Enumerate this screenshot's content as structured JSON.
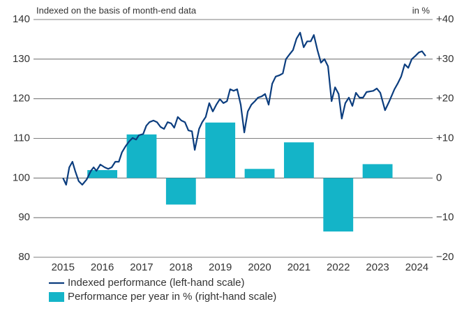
{
  "chart_data": {
    "type": "combo",
    "title": "Indexed on the basis of month-end data",
    "y2_label": "in %",
    "xlim": [
      2014.25,
      2024.4
    ],
    "xticks": [
      2015,
      2016,
      2017,
      2018,
      2019,
      2020,
      2021,
      2022,
      2023,
      2024
    ],
    "ylim": [
      80,
      140
    ],
    "yticks": [
      80,
      90,
      100,
      110,
      120,
      130,
      140
    ],
    "y2lim": [
      -20,
      40
    ],
    "y2ticks": [
      {
        "value": 40,
        "label": "+40"
      },
      {
        "value": 30,
        "label": "+30"
      },
      {
        "value": 20,
        "label": "+20"
      },
      {
        "value": 10,
        "label": "+10"
      },
      0,
      {
        "value": -10,
        "label": "−10"
      },
      {
        "value": -20,
        "label": "−20"
      }
    ],
    "grid": true,
    "legend": "bottom-left",
    "series": [
      {
        "name": "Indexed performance (left-hand scale)",
        "type": "line",
        "color": "#0b3d7e",
        "axis": "y",
        "x": [
          2015.0,
          2015.08,
          2015.16,
          2015.24,
          2015.31,
          2015.4,
          2015.49,
          2015.6,
          2015.71,
          2015.78,
          2015.85,
          2015.95,
          2016.06,
          2016.15,
          2016.24,
          2016.33,
          2016.42,
          2016.5,
          2016.59,
          2016.68,
          2016.77,
          2016.86,
          2016.93,
          2017.04,
          2017.12,
          2017.2,
          2017.3,
          2017.39,
          2017.48,
          2017.57,
          2017.66,
          2017.75,
          2017.83,
          2017.92,
          2018.01,
          2018.1,
          2018.19,
          2018.28,
          2018.35,
          2018.46,
          2018.54,
          2018.63,
          2018.72,
          2018.81,
          2018.9,
          2018.99,
          2019.08,
          2019.17,
          2019.25,
          2019.34,
          2019.43,
          2019.52,
          2019.61,
          2019.7,
          2019.79,
          2019.88,
          2019.96,
          2020.05,
          2020.14,
          2020.23,
          2020.32,
          2020.41,
          2020.5,
          2020.59,
          2020.67,
          2020.76,
          2020.85,
          2020.94,
          2021.03,
          2021.12,
          2021.21,
          2021.3,
          2021.38,
          2021.47,
          2021.56,
          2021.65,
          2021.74,
          2021.83,
          2021.92,
          2022.01,
          2022.09,
          2022.18,
          2022.27,
          2022.36,
          2022.45,
          2022.54,
          2022.63,
          2022.72,
          2022.89,
          2022.98,
          2023.07,
          2023.19,
          2023.3,
          2023.43,
          2023.51,
          2023.6,
          2023.69,
          2023.78,
          2023.87,
          2023.96,
          2024.05,
          2024.13,
          2024.19,
          2024.22
        ],
        "values": [
          100,
          98.3,
          102.7,
          104.1,
          101.8,
          99.2,
          98.3,
          99.6,
          101.8,
          102.7,
          101.8,
          103.4,
          102.7,
          102.3,
          102.7,
          104.1,
          104.1,
          106.5,
          108,
          109.2,
          110.1,
          109.7,
          110.8,
          111.1,
          113.2,
          114.1,
          114.5,
          114.1,
          112.9,
          112.4,
          114.1,
          113.8,
          112.7,
          115.4,
          114.5,
          114.1,
          112,
          111.8,
          107.1,
          112.4,
          114.1,
          115.4,
          118.9,
          116.8,
          118.5,
          119.9,
          118.9,
          119.4,
          122.4,
          122,
          122.4,
          118.5,
          111.5,
          116.8,
          118.5,
          119.4,
          120.3,
          120.6,
          121.2,
          118.5,
          123.8,
          125.6,
          125.9,
          126.4,
          130,
          131.2,
          132.3,
          135.2,
          136.7,
          133,
          134.5,
          134.5,
          136.1,
          132.3,
          129.1,
          130,
          128.2,
          119.4,
          122.9,
          121.2,
          115,
          118.9,
          120.3,
          118.2,
          121.5,
          120.3,
          120.3,
          121.7,
          122,
          122.6,
          121.5,
          117.1,
          119.4,
          122.4,
          123.8,
          125.6,
          128.7,
          127.8,
          130,
          130.8,
          131.7,
          132,
          131.2,
          130.8
        ]
      },
      {
        "name": "Performance per year in % (right-hand scale)",
        "type": "bar",
        "color": "#14b4c8",
        "axis": "y2",
        "x": [
          2016,
          2017,
          2018,
          2019,
          2020,
          2021,
          2022,
          2023
        ],
        "values": [
          2,
          11,
          -6.7,
          14,
          2.3,
          9,
          -13.5,
          3.5
        ]
      }
    ]
  }
}
